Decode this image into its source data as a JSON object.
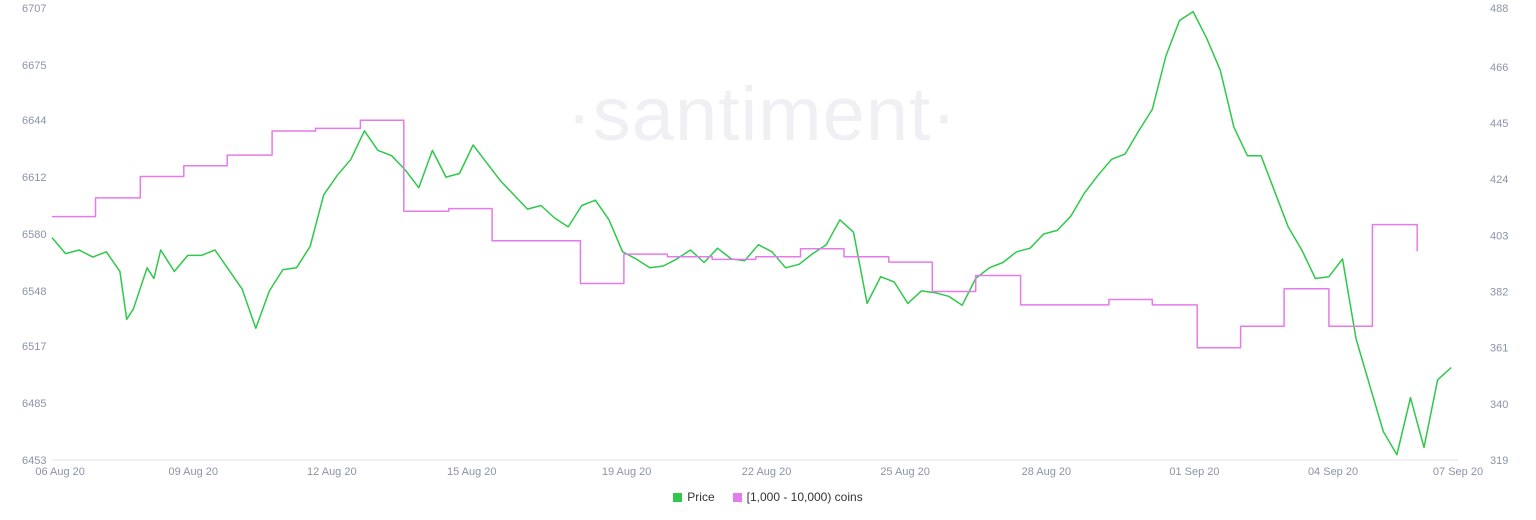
{
  "watermark": "·santiment·",
  "colors": {
    "price": "#2ec94a",
    "coins": "#e57bea",
    "grid": "#eef0f4",
    "tick": "#8b93a7"
  },
  "legend": [
    {
      "label": "Price",
      "color": "#2ec94a"
    },
    {
      "label": "[1,000 - 10,000) coins",
      "color": "#e57bea"
    }
  ],
  "chart_data": {
    "type": "line",
    "x_ticks": [
      "06 Aug 20",
      "09 Aug 20",
      "12 Aug 20",
      "15 Aug 20",
      "19 Aug 20",
      "22 Aug 20",
      "25 Aug 20",
      "28 Aug 20",
      "01 Sep 20",
      "04 Sep 20",
      "07 Sep 20"
    ],
    "y_left_ticks": [
      6707,
      6675,
      6644,
      6612,
      6580,
      6548,
      6517,
      6485,
      6453
    ],
    "y_right_ticks": [
      488,
      466,
      445,
      424,
      403,
      382,
      361,
      340,
      319
    ],
    "y_left_range": [
      6453,
      6707
    ],
    "y_right_range": [
      319,
      488
    ],
    "series": [
      {
        "name": "Price",
        "axis": "left",
        "color": "#2ec94a",
        "step": false,
        "points": [
          [
            0,
            6578
          ],
          [
            1,
            6569
          ],
          [
            2,
            6571
          ],
          [
            3,
            6567
          ],
          [
            4,
            6570
          ],
          [
            5,
            6559
          ],
          [
            5.5,
            6532
          ],
          [
            6,
            6538
          ],
          [
            7,
            6561
          ],
          [
            7.5,
            6555
          ],
          [
            8,
            6571
          ],
          [
            8.5,
            6565
          ],
          [
            9,
            6559
          ],
          [
            10,
            6568
          ],
          [
            11,
            6568
          ],
          [
            12,
            6571
          ],
          [
            13,
            6560
          ],
          [
            14,
            6549
          ],
          [
            15,
            6527
          ],
          [
            16,
            6548
          ],
          [
            17,
            6560
          ],
          [
            18,
            6561
          ],
          [
            19,
            6573
          ],
          [
            20,
            6602
          ],
          [
            21,
            6613
          ],
          [
            22,
            6622
          ],
          [
            23,
            6638
          ],
          [
            24,
            6627
          ],
          [
            25,
            6624
          ],
          [
            26,
            6616
          ],
          [
            27,
            6606
          ],
          [
            28,
            6627
          ],
          [
            29,
            6612
          ],
          [
            30,
            6614
          ],
          [
            31,
            6630
          ],
          [
            32,
            6620
          ],
          [
            33,
            6610
          ],
          [
            34,
            6602
          ],
          [
            35,
            6594
          ],
          [
            36,
            6596
          ],
          [
            37,
            6589
          ],
          [
            38,
            6584
          ],
          [
            39,
            6596
          ],
          [
            40,
            6599
          ],
          [
            41,
            6588
          ],
          [
            42,
            6570
          ],
          [
            43,
            6566
          ],
          [
            44,
            6561
          ],
          [
            45,
            6562
          ],
          [
            46,
            6566
          ],
          [
            47,
            6571
          ],
          [
            48,
            6564
          ],
          [
            49,
            6572
          ],
          [
            50,
            6566
          ],
          [
            51,
            6565
          ],
          [
            52,
            6574
          ],
          [
            53,
            6570
          ],
          [
            54,
            6561
          ],
          [
            55,
            6563
          ],
          [
            56,
            6569
          ],
          [
            57,
            6574
          ],
          [
            58,
            6588
          ],
          [
            59,
            6581
          ],
          [
            60,
            6541
          ],
          [
            61,
            6556
          ],
          [
            62,
            6553
          ],
          [
            63,
            6541
          ],
          [
            64,
            6548
          ],
          [
            65,
            6547
          ],
          [
            66,
            6545
          ],
          [
            67,
            6540
          ],
          [
            68,
            6555
          ],
          [
            69,
            6561
          ],
          [
            70,
            6564
          ],
          [
            71,
            6570
          ],
          [
            72,
            6572
          ],
          [
            73,
            6580
          ],
          [
            74,
            6582
          ],
          [
            75,
            6590
          ],
          [
            76,
            6603
          ],
          [
            77,
            6613
          ],
          [
            78,
            6622
          ],
          [
            79,
            6625
          ],
          [
            80,
            6638
          ],
          [
            81,
            6650
          ],
          [
            82,
            6680
          ],
          [
            83,
            6700
          ],
          [
            84,
            6705
          ],
          [
            85,
            6690
          ],
          [
            86,
            6672
          ],
          [
            87,
            6640
          ],
          [
            88,
            6624
          ],
          [
            89,
            6624
          ],
          [
            90,
            6604
          ],
          [
            91,
            6584
          ],
          [
            92,
            6571
          ],
          [
            93,
            6555
          ],
          [
            94,
            6556
          ],
          [
            95,
            6566
          ],
          [
            96,
            6521
          ],
          [
            97,
            6495
          ],
          [
            98,
            6469
          ],
          [
            99,
            6456
          ],
          [
            100,
            6488
          ],
          [
            101,
            6460
          ],
          [
            102,
            6498
          ],
          [
            103,
            6505
          ]
        ]
      },
      {
        "name": "[1,000 - 10,000) coins",
        "axis": "right",
        "color": "#e57bea",
        "step": true,
        "points": [
          [
            0,
            410
          ],
          [
            3.2,
            410
          ],
          [
            3.2,
            417
          ],
          [
            6.5,
            417
          ],
          [
            6.5,
            425
          ],
          [
            9.7,
            425
          ],
          [
            9.7,
            429
          ],
          [
            12.9,
            429
          ],
          [
            12.9,
            433
          ],
          [
            16.2,
            433
          ],
          [
            16.2,
            442
          ],
          [
            19.4,
            442
          ],
          [
            19.4,
            443
          ],
          [
            22.7,
            443
          ],
          [
            22.7,
            446
          ],
          [
            25.9,
            446
          ],
          [
            25.9,
            412
          ],
          [
            29.2,
            412
          ],
          [
            29.2,
            413
          ],
          [
            32.4,
            413
          ],
          [
            32.4,
            401
          ],
          [
            38.9,
            401
          ],
          [
            38.9,
            385
          ],
          [
            42.1,
            385
          ],
          [
            42.1,
            396
          ],
          [
            45.3,
            396
          ],
          [
            45.3,
            395
          ],
          [
            48.6,
            395
          ],
          [
            48.6,
            394
          ],
          [
            51.8,
            394
          ],
          [
            51.8,
            395
          ],
          [
            55.1,
            395
          ],
          [
            55.1,
            398
          ],
          [
            58.3,
            398
          ],
          [
            58.3,
            395
          ],
          [
            61.6,
            395
          ],
          [
            61.6,
            393
          ],
          [
            64.8,
            393
          ],
          [
            64.8,
            382
          ],
          [
            68.0,
            382
          ],
          [
            68.0,
            388
          ],
          [
            71.3,
            388
          ],
          [
            71.3,
            377
          ],
          [
            77.8,
            377
          ],
          [
            77.8,
            379
          ],
          [
            81.0,
            379
          ],
          [
            81.0,
            377
          ],
          [
            84.3,
            377
          ],
          [
            84.3,
            361
          ],
          [
            87.5,
            361
          ],
          [
            87.5,
            369
          ],
          [
            90.7,
            369
          ],
          [
            90.7,
            383
          ],
          [
            94.0,
            383
          ],
          [
            94.0,
            369
          ],
          [
            97.2,
            369
          ],
          [
            97.2,
            407
          ],
          [
            100.5,
            407
          ],
          [
            100.5,
            397
          ]
        ]
      }
    ]
  }
}
